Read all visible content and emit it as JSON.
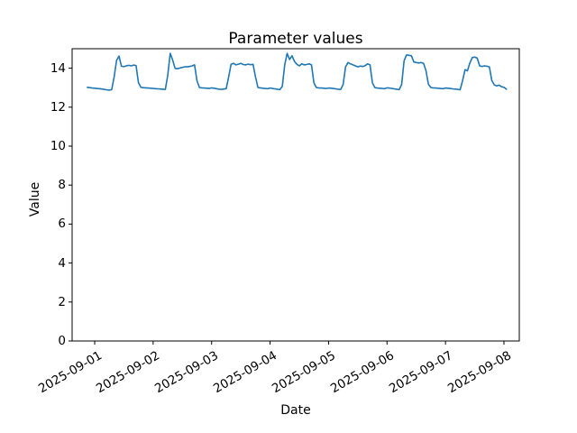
{
  "chart_data": {
    "type": "line",
    "title": "Parameter values",
    "xlabel": "Date",
    "ylabel": "Value",
    "x_tick_labels": [
      "2025-09-01",
      "2025-09-02",
      "2025-09-03",
      "2025-09-04",
      "2025-09-05",
      "2025-09-06",
      "2025-09-07",
      "2025-09-08"
    ],
    "y_tick_values": [
      0,
      2,
      4,
      6,
      8,
      10,
      12,
      14
    ],
    "ylim": [
      0,
      15
    ],
    "grid": false,
    "legend": "none",
    "line_color": "#1f77b4",
    "series": [
      {
        "name": "Parameter",
        "start": "2025-08-31 21:00",
        "step_hours": 1,
        "values": [
          13.02,
          13.0,
          12.98,
          12.97,
          12.96,
          12.95,
          12.93,
          12.91,
          12.89,
          12.87,
          12.9,
          13.55,
          14.4,
          14.62,
          14.1,
          14.08,
          14.12,
          14.15,
          14.12,
          14.16,
          14.14,
          13.25,
          13.02,
          13.0,
          12.99,
          12.98,
          12.97,
          12.96,
          12.95,
          12.94,
          12.93,
          12.92,
          12.91,
          13.65,
          14.76,
          14.42,
          13.99,
          13.97,
          14.01,
          14.04,
          14.07,
          14.07,
          14.09,
          14.12,
          14.17,
          13.35,
          13.01,
          12.99,
          12.98,
          12.97,
          12.96,
          12.99,
          12.97,
          12.95,
          12.92,
          12.91,
          12.93,
          12.95,
          13.55,
          14.2,
          14.25,
          14.17,
          14.21,
          14.25,
          14.19,
          14.17,
          14.21,
          14.18,
          14.2,
          13.55,
          13.01,
          12.99,
          12.97,
          12.96,
          12.95,
          12.98,
          12.96,
          12.94,
          12.92,
          12.9,
          13.06,
          14.17,
          14.76,
          14.45,
          14.64,
          14.35,
          14.2,
          14.12,
          14.22,
          14.17,
          14.19,
          14.22,
          14.17,
          13.25,
          13.01,
          12.99,
          12.98,
          12.97,
          12.96,
          12.98,
          12.97,
          12.96,
          12.94,
          12.92,
          12.91,
          13.16,
          14.07,
          14.29,
          14.22,
          14.17,
          14.12,
          14.07,
          14.11,
          14.09,
          14.13,
          14.22,
          14.17,
          13.25,
          13.0,
          12.98,
          12.97,
          12.96,
          12.95,
          12.99,
          12.98,
          12.96,
          12.94,
          12.92,
          12.9,
          13.16,
          14.38,
          14.68,
          14.66,
          14.64,
          14.32,
          14.29,
          14.27,
          14.29,
          14.25,
          13.87,
          13.17,
          13.01,
          12.99,
          12.98,
          12.97,
          12.96,
          12.95,
          12.98,
          12.97,
          12.96,
          12.94,
          12.93,
          12.91,
          12.9,
          13.36,
          13.92,
          13.87,
          14.27,
          14.55,
          14.57,
          14.52,
          14.12,
          14.09,
          14.12,
          14.1,
          14.07,
          13.37,
          13.15,
          13.09,
          13.13,
          13.05,
          13.02,
          12.92
        ]
      }
    ]
  }
}
